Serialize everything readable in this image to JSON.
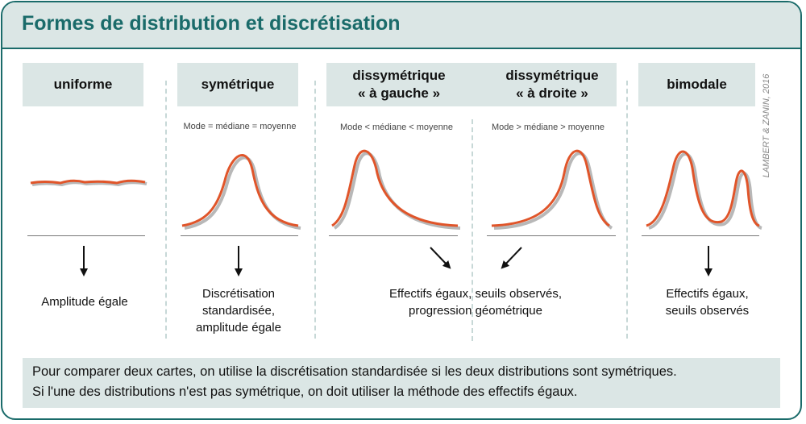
{
  "title": "Formes de distribution et discrétisation",
  "credit": "LAMBERT & ZANIN, 2016",
  "columns": {
    "uniforme": {
      "heading": "uniforme"
    },
    "symetrique": {
      "heading": "symétrique",
      "note": "Mode = médiane = moyenne"
    },
    "gauche": {
      "heading_line1": "dissymétrique",
      "heading_line2": "« à gauche »",
      "note": "Mode < médiane < moyenne"
    },
    "droite": {
      "heading_line1": "dissymétrique",
      "heading_line2": "« à droite »",
      "note": "Mode > médiane > moyenne"
    },
    "bimodale": {
      "heading": "bimodale"
    }
  },
  "methods": {
    "uniforme": "Amplitude égale",
    "symetrique_line1": "Discrétisation",
    "symetrique_line2": "standardisée,",
    "symetrique_line3": "amplitude égale",
    "dissymetrique_line1": "Effectifs égaux, seuils observés,",
    "dissymetrique_line2": "progression géométrique",
    "bimodale_line1": "Effectifs égaux,",
    "bimodale_line2": "seuils observés"
  },
  "footer": {
    "line1": "Pour comparer deux cartes, on utilise la discrétisation standardisée si les deux distributions sont symétriques.",
    "line2": "Si l'une des distributions n'est pas symétrique, on doit utiliser la méthode des effectifs égaux."
  },
  "colors": {
    "accent": "#1a6b6a",
    "panel": "#dbe6e5",
    "curve": "#e0552a",
    "shadow": "#b8b8b8"
  }
}
